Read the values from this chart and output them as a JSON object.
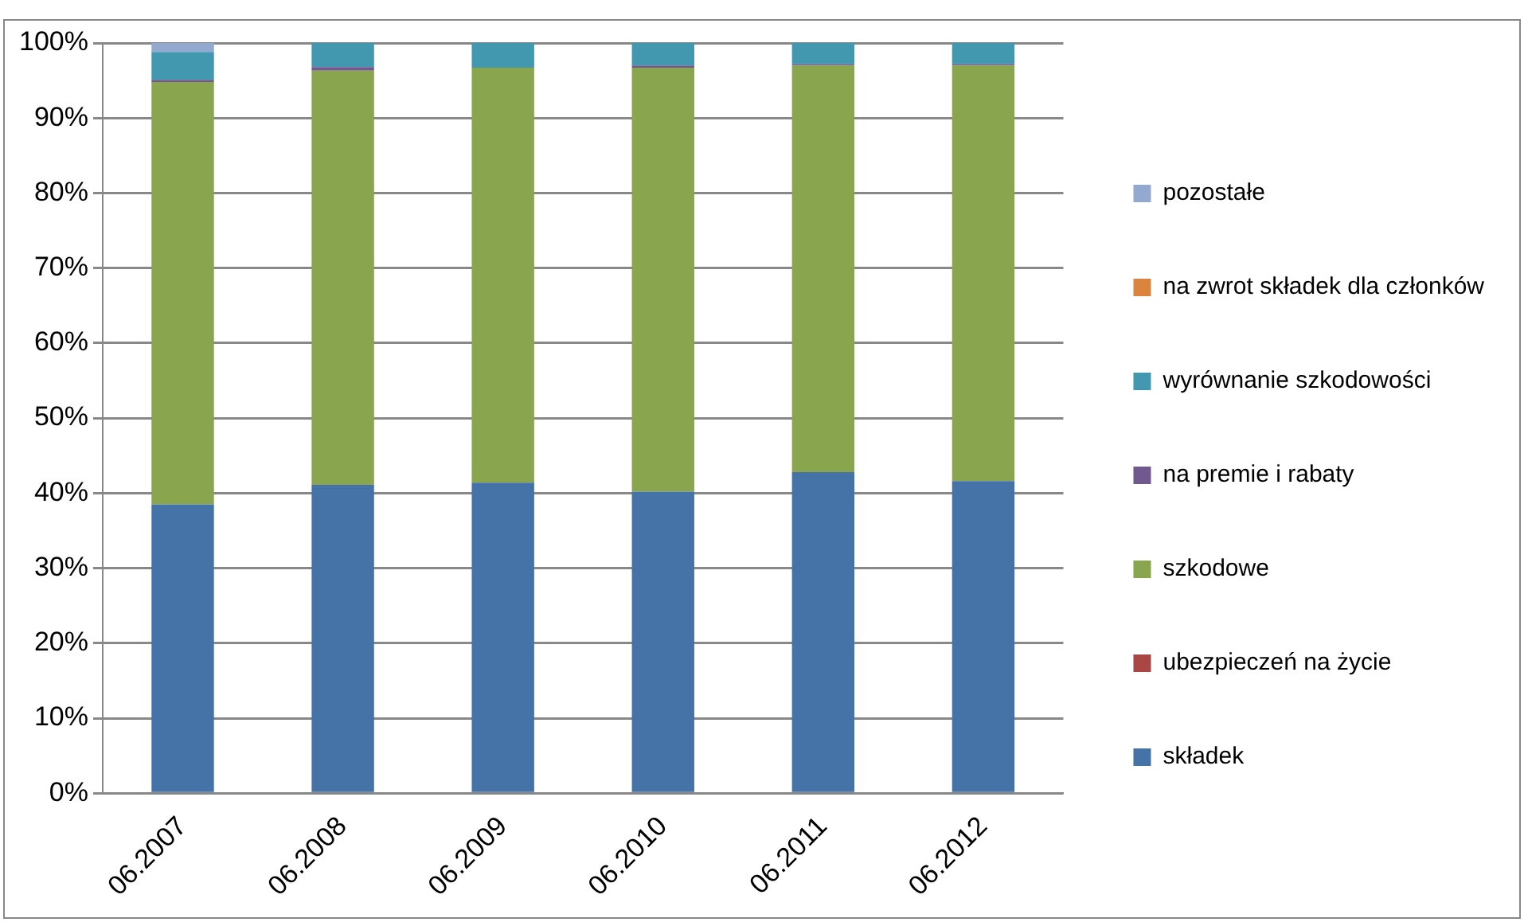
{
  "chart_data": {
    "type": "bar",
    "stacked": true,
    "categories": [
      "06.2007",
      "06.2008",
      "06.2009",
      "06.2010",
      "06.2011",
      "06.2012"
    ],
    "series": [
      {
        "name": "składek",
        "color": "#4572a7",
        "values": [
          38.5,
          41.1,
          41.4,
          40.2,
          42.8,
          41.6
        ]
      },
      {
        "name": "ubezpieczeń na życie",
        "color": "#aa4643",
        "values": [
          0,
          0,
          0,
          0,
          0,
          0
        ]
      },
      {
        "name": "szkodowe",
        "color": "#89a54e",
        "values": [
          56.3,
          55.2,
          55.3,
          56.5,
          54.2,
          55.4
        ]
      },
      {
        "name": "na premie i rabaty",
        "color": "#71588f",
        "values": [
          0.3,
          0.5,
          0,
          0.3,
          0.2,
          0.2
        ]
      },
      {
        "name": "wyrównanie szkodowości",
        "color": "#4198af",
        "values": [
          3.7,
          3.2,
          3.3,
          3.0,
          2.8,
          2.8
        ]
      },
      {
        "name": "na zwrot składek dla członków",
        "color": "#db843d",
        "values": [
          0,
          0,
          0,
          0,
          0,
          0
        ]
      },
      {
        "name": "pozostałe",
        "color": "#93a9cf",
        "values": [
          1.2,
          0,
          0,
          0,
          0,
          0
        ]
      }
    ],
    "ylim": [
      0,
      100
    ],
    "yticks": [
      {
        "value": 0,
        "label": "0%"
      },
      {
        "value": 10,
        "label": "10%"
      },
      {
        "value": 20,
        "label": "20%"
      },
      {
        "value": 30,
        "label": "30%"
      },
      {
        "value": 40,
        "label": "40%"
      },
      {
        "value": 50,
        "label": "50%"
      },
      {
        "value": 60,
        "label": "60%"
      },
      {
        "value": 70,
        "label": "70%"
      },
      {
        "value": 80,
        "label": "80%"
      },
      {
        "value": 90,
        "label": "90%"
      },
      {
        "value": 100,
        "label": "100%"
      }
    ],
    "grid": "y",
    "legend": "right"
  }
}
